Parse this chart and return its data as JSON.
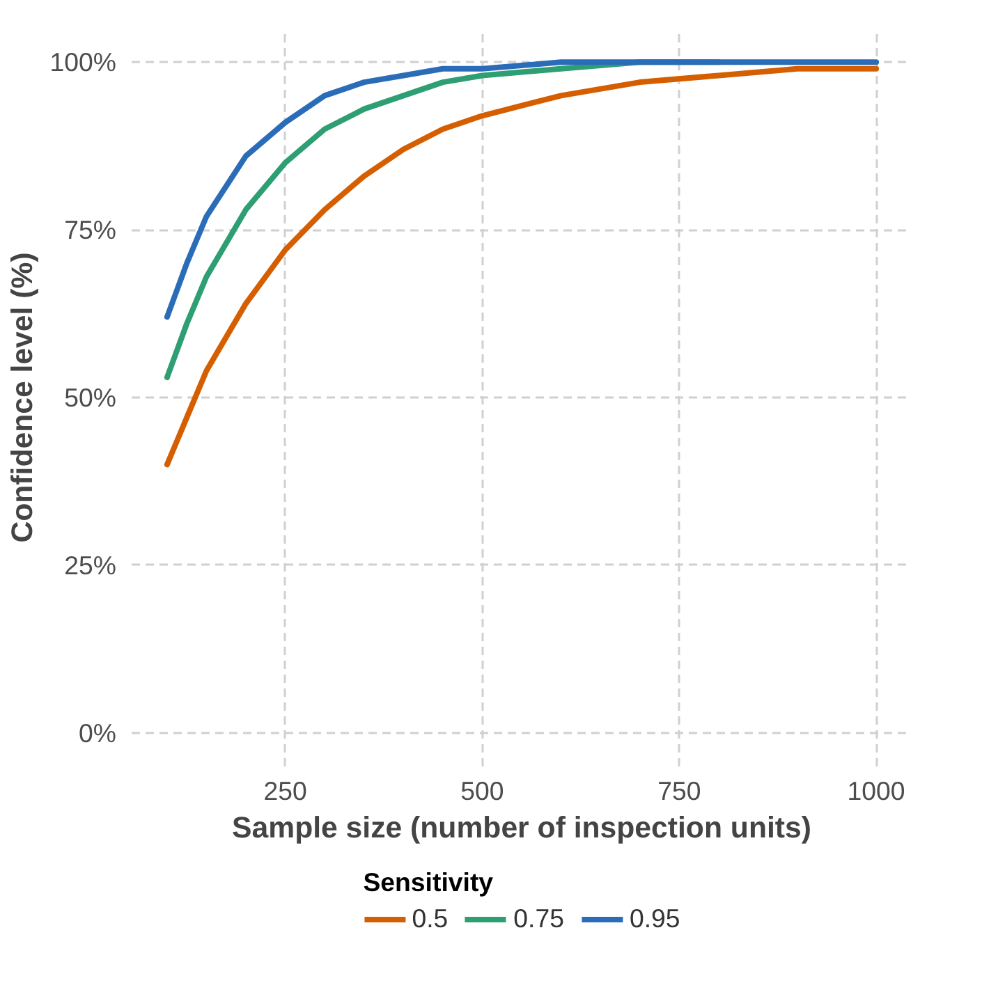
{
  "chart_data": {
    "type": "line",
    "xlabel": "Sample size (number of inspection units)",
    "ylabel": "Confidence level (%)",
    "legend_title": "Sensitivity",
    "x": [
      100,
      125,
      150,
      200,
      250,
      300,
      350,
      400,
      450,
      500,
      600,
      700,
      800,
      900,
      1000
    ],
    "series": [
      {
        "name": "0.5",
        "color": "#d55e00",
        "values": [
          40,
          47,
          54,
          64,
          72,
          78,
          83,
          87,
          90,
          92,
          95,
          97,
          98,
          99,
          99
        ]
      },
      {
        "name": "0.75",
        "color": "#2e9e73",
        "values": [
          53,
          61,
          68,
          78,
          85,
          90,
          93,
          95,
          97,
          98,
          99,
          100,
          100,
          null,
          null
        ]
      },
      {
        "name": "0.95",
        "color": "#2b6cb8",
        "values": [
          62,
          70,
          77,
          86,
          91,
          95,
          97,
          98,
          99,
          99,
          100,
          100,
          100,
          100,
          100
        ]
      }
    ],
    "xlim": [
      55,
      1045
    ],
    "ylim": [
      -5,
      105
    ],
    "xticks": [
      250,
      500,
      750,
      1000
    ],
    "yticks": [
      {
        "value": 0,
        "label": "0%"
      },
      {
        "value": 25,
        "label": "25%"
      },
      {
        "value": 50,
        "label": "50%"
      },
      {
        "value": 75,
        "label": "75%"
      },
      {
        "value": 100,
        "label": "100%"
      }
    ],
    "grid": true,
    "legend": "bottom",
    "marker": "none",
    "line_style": "solid"
  }
}
